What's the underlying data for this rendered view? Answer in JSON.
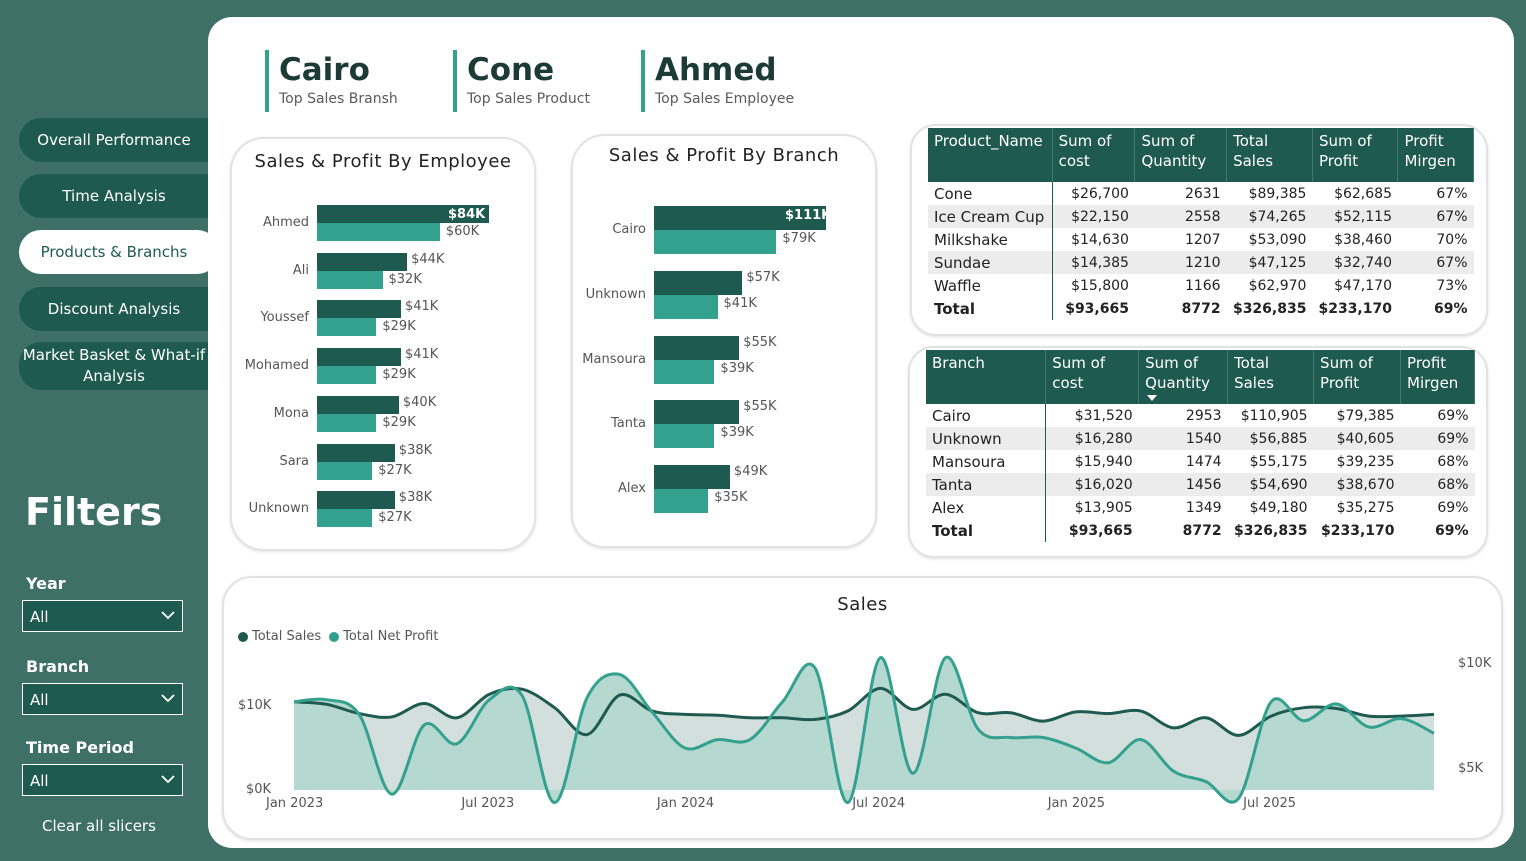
{
  "nav": [
    {
      "label": "Overall Performance",
      "active": false
    },
    {
      "label": "Time Analysis",
      "active": false
    },
    {
      "label": "Products & Branchs",
      "active": true
    },
    {
      "label": "Discount Analysis",
      "active": false
    },
    {
      "label": "Market Basket & What-if Analysis",
      "active": false
    }
  ],
  "filters": {
    "title": "Filters",
    "year": {
      "label": "Year",
      "value": "All"
    },
    "branch": {
      "label": "Branch",
      "value": "All"
    },
    "period": {
      "label": "Time Period",
      "value": "All"
    },
    "clear": "Clear all slicers"
  },
  "kpis": [
    {
      "value": "Cairo",
      "label": "Top Sales Bransh"
    },
    {
      "value": "Cone",
      "label": "Top Sales Product"
    },
    {
      "value": "Ahmed",
      "label": "Top Sales Employee"
    }
  ],
  "colors": {
    "sales": "#1e5a50",
    "profit": "#34a08e",
    "background": "#3f7068"
  },
  "employee_chart": {
    "title": "Sales & Profit By Employee",
    "rows": [
      {
        "name": "Ahmed",
        "sales": 84,
        "profit": 60,
        "sales_label": "$84K",
        "profit_label": "$60K"
      },
      {
        "name": "Ali",
        "sales": 44,
        "profit": 32,
        "sales_label": "$44K",
        "profit_label": "$32K"
      },
      {
        "name": "Youssef",
        "sales": 41,
        "profit": 29,
        "sales_label": "$41K",
        "profit_label": "$29K"
      },
      {
        "name": "Mohamed",
        "sales": 41,
        "profit": 29,
        "sales_label": "$41K",
        "profit_label": "$29K"
      },
      {
        "name": "Mona",
        "sales": 40,
        "profit": 29,
        "sales_label": "$40K",
        "profit_label": "$29K"
      },
      {
        "name": "Sara",
        "sales": 38,
        "profit": 27,
        "sales_label": "$38K",
        "profit_label": "$27K"
      },
      {
        "name": "Unknown",
        "sales": 38,
        "profit": 27,
        "sales_label": "$38K",
        "profit_label": "$27K"
      }
    ]
  },
  "branch_chart": {
    "title": "Sales & Profit By Branch",
    "rows": [
      {
        "name": "Cairo",
        "sales": 111,
        "profit": 79,
        "sales_label": "$111K",
        "profit_label": "$79K"
      },
      {
        "name": "Unknown",
        "sales": 57,
        "profit": 41,
        "sales_label": "$57K",
        "profit_label": "$41K"
      },
      {
        "name": "Mansoura",
        "sales": 55,
        "profit": 39,
        "sales_label": "$55K",
        "profit_label": "$39K"
      },
      {
        "name": "Tanta",
        "sales": 55,
        "profit": 39,
        "sales_label": "$55K",
        "profit_label": "$39K"
      },
      {
        "name": "Alex",
        "sales": 49,
        "profit": 35,
        "sales_label": "$49K",
        "profit_label": "$35K"
      }
    ]
  },
  "product_table": {
    "headers": [
      "Product_Name",
      "Sum of cost",
      "Sum of Quantity",
      "Total Sales",
      "Sum of Profit",
      "Profit Mirgen"
    ],
    "rows": [
      [
        "Cone",
        "$26,700",
        "2631",
        "$89,385",
        "$62,685",
        "67%"
      ],
      [
        "Ice Cream Cup",
        "$22,150",
        "2558",
        "$74,265",
        "$52,115",
        "67%"
      ],
      [
        "Milkshake",
        "$14,630",
        "1207",
        "$53,090",
        "$38,460",
        "70%"
      ],
      [
        "Sundae",
        "$14,385",
        "1210",
        "$47,125",
        "$32,740",
        "67%"
      ],
      [
        "Waffle",
        "$15,800",
        "1166",
        "$62,970",
        "$47,170",
        "73%"
      ]
    ],
    "total": [
      "Total",
      "$93,665",
      "8772",
      "$326,835",
      "$233,170",
      "69%"
    ]
  },
  "branch_table": {
    "headers": [
      "Branch",
      "Sum of cost",
      "Sum of Quantity",
      "Total Sales",
      "Sum of Profit",
      "Profit Mirgen"
    ],
    "rows": [
      [
        "Cairo",
        "$31,520",
        "2953",
        "$110,905",
        "$79,385",
        "69%"
      ],
      [
        "Unknown",
        "$16,280",
        "1540",
        "$56,885",
        "$40,605",
        "69%"
      ],
      [
        "Mansoura",
        "$15,940",
        "1474",
        "$55,175",
        "$39,235",
        "68%"
      ],
      [
        "Tanta",
        "$16,020",
        "1456",
        "$54,690",
        "$38,670",
        "68%"
      ],
      [
        "Alex",
        "$13,905",
        "1349",
        "$49,180",
        "$35,275",
        "69%"
      ]
    ],
    "total": [
      "Total",
      "$93,665",
      "8772",
      "$326,835",
      "$233,170",
      "69%"
    ]
  },
  "chart_data": {
    "type": "area",
    "title": "Sales",
    "x_ticks": [
      "Jan 2023",
      "Jul 2023",
      "Jan 2024",
      "Jul 2024",
      "Jan 2025",
      "Jul 2025"
    ],
    "y_left_ticks": [
      "$0K",
      "$10K"
    ],
    "y_right_ticks": [
      "$5K",
      "$10K"
    ],
    "x_start": "2023-01",
    "x_end": "2025-12",
    "legend_position": "top-left",
    "series": [
      {
        "name": "Total Sales",
        "axis": "left",
        "color": "#1e5a50",
        "values": [
          10.5,
          10.2,
          9.1,
          8.7,
          10.3,
          8.6,
          11.4,
          12.0,
          9.8,
          6.6,
          11.3,
          9.4,
          9.0,
          8.9,
          8.6,
          8.6,
          8.4,
          9.4,
          12.1,
          9.6,
          11.4,
          9.2,
          9.2,
          8.2,
          9.3,
          9.1,
          9.4,
          7.4,
          8.6,
          6.5,
          8.8,
          9.8,
          9.7,
          8.8,
          8.8,
          9.0
        ]
      },
      {
        "name": "Total Net Profit",
        "axis": "right",
        "color": "#34a08e",
        "values": [
          8.2,
          8.3,
          7.6,
          3.8,
          7.1,
          6.2,
          8.3,
          8.5,
          3.4,
          8.4,
          9.5,
          7.7,
          6.0,
          6.4,
          6.4,
          8.2,
          9.8,
          3.4,
          10.3,
          4.8,
          10.3,
          6.9,
          6.5,
          6.5,
          6.0,
          5.3,
          6.4,
          4.9,
          4.4,
          3.6,
          8.2,
          7.3,
          8.1,
          7.0,
          7.4,
          6.7
        ]
      }
    ]
  }
}
